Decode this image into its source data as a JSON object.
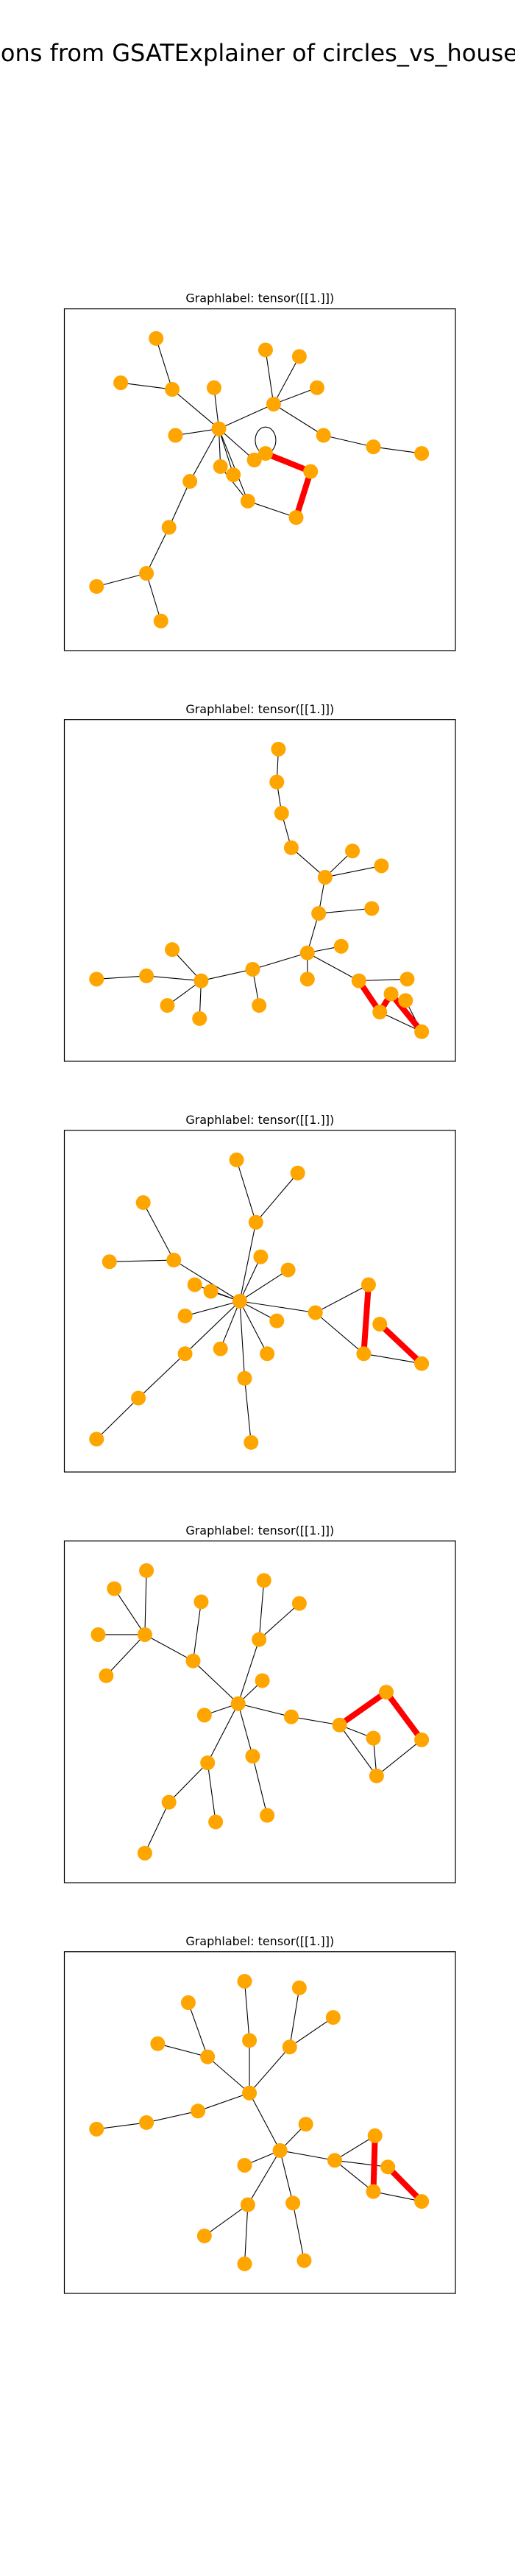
{
  "title": "zations from GSATExplainer of circles_vs_houses w",
  "panels": [
    {
      "title": "Graphlabel: tensor([[1.]])"
    },
    {
      "title": "Graphlabel: tensor([[1.]])"
    },
    {
      "title": "Graphlabel: tensor([[1.]])"
    },
    {
      "title": "Graphlabel: tensor([[1.]])"
    },
    {
      "title": "Graphlabel: tensor([[1.]])"
    }
  ]
}
